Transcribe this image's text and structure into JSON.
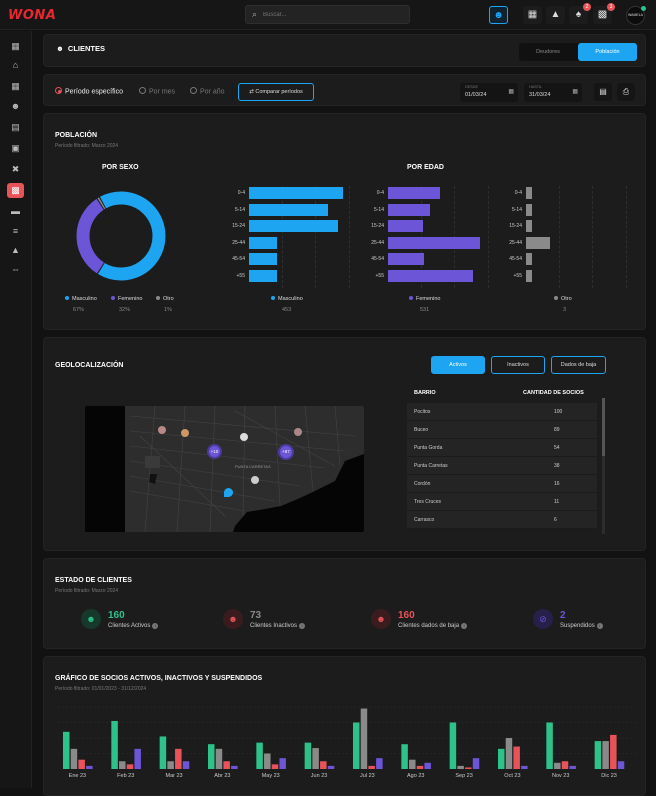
{
  "app": {
    "logo": "WONA",
    "search_placeholder": "Buscar...",
    "avatar_text": "WAMELA"
  },
  "topbar": {
    "notif_count": "2",
    "msg_count": "3"
  },
  "header": {
    "title": "CLIENTES",
    "tab_deudores": "Deudores",
    "tab_poblacion": "Población"
  },
  "filters": {
    "periodo_especifico": "Período específico",
    "por_mes": "Por mes",
    "por_anio": "Por año",
    "comparar": "Comparar períodos",
    "desde_label": "DESDE",
    "desde_value": "01/03/24",
    "hasta_label": "HASTA",
    "hasta_value": "31/03/24"
  },
  "poblacion": {
    "title": "POBLACIÓN",
    "subtitle": "Período filtrado: Marzo 2024",
    "por_sexo": "POR SEXO",
    "por_edad": "POR EDAD",
    "donut": [
      {
        "label": "Masculino",
        "pct": "67%",
        "value": 67,
        "color": "#1ea5f2"
      },
      {
        "label": "Femenino",
        "pct": "32%",
        "value": 32,
        "color": "#6c55d6"
      },
      {
        "label": "Otro",
        "pct": "1%",
        "value": 1,
        "color": "#8a8a8a"
      }
    ],
    "age_groups": [
      "0-4",
      "5-14",
      "15-24",
      "25-44",
      "45-54",
      "+55"
    ],
    "masculino": {
      "label": "Masculino",
      "total": "453",
      "values": [
        95,
        80,
        90,
        28,
        28,
        28
      ],
      "color": "#1ea5f2"
    },
    "femenino": {
      "label": "Femenino",
      "total": "531",
      "values": [
        53,
        42,
        35,
        93,
        36,
        86
      ],
      "color": "#6c55d6"
    },
    "otro": {
      "label": "Otro",
      "total": "3",
      "values": [
        6,
        6,
        6,
        24,
        6,
        6
      ],
      "color": "#8a8a8a"
    }
  },
  "geo": {
    "title": "GEOLOCALIZACIÓN",
    "btn_activos": "Activos",
    "btn_inactivos": "Inactivos",
    "btn_baja": "Dados de baja",
    "map_label": "PUNTA CARRETAS",
    "cluster_a": "+10",
    "cluster_b": "+87",
    "col_barrio": "BARRIO",
    "col_cantidad": "CANTIDAD DE SOCIOS",
    "rows": [
      {
        "barrio": "Pocitos",
        "cantidad": "100"
      },
      {
        "barrio": "Buceo",
        "cantidad": "89"
      },
      {
        "barrio": "Punta Gorda",
        "cantidad": "54"
      },
      {
        "barrio": "Punta Carretas",
        "cantidad": "38"
      },
      {
        "barrio": "Cordón",
        "cantidad": "16"
      },
      {
        "barrio": "Tres Cruces",
        "cantidad": "11"
      },
      {
        "barrio": "Carrasco",
        "cantidad": "6"
      }
    ]
  },
  "estado": {
    "title": "ESTADO DE CLIENTES",
    "subtitle": "Período filtrado: Marzo 2024",
    "activos": {
      "num": "160",
      "label": "Clientes Activos",
      "color": "#2ec28a"
    },
    "inactivos": {
      "num": "73",
      "label": "Clientes Inactivos",
      "color": "#8a8a8a"
    },
    "baja": {
      "num": "160",
      "label": "Clientes dados de baja",
      "color": "#e8535a"
    },
    "suspendidos": {
      "num": "2",
      "label": "Suspendidos",
      "color": "#6c55d6"
    }
  },
  "chart_data": {
    "type": "bar",
    "title": "GRÁFICO DE SOCIOS ACTIVOS, INACTIVOS Y SUSPENDIDOS",
    "subtitle": "Período filtrado: 01/01/2023 - 31/12/2024",
    "categories": [
      "Ene 23",
      "Feb 23",
      "Mar 23",
      "Abr 23",
      "May 23",
      "Jun 23",
      "Jul 23",
      "Ago 23",
      "Sep 23",
      "Oct 23",
      "Nov 23",
      "Dic 23"
    ],
    "series": [
      {
        "values": [
          48,
          62,
          42,
          32,
          34,
          34,
          60,
          32,
          60,
          26,
          60,
          36
        ],
        "color": "#2ec28a"
      },
      {
        "values": [
          26,
          10,
          10,
          26,
          20,
          27,
          78,
          12,
          4,
          40,
          8,
          36
        ],
        "color": "#8a8a8a"
      },
      {
        "values": [
          12,
          6,
          26,
          10,
          6,
          10,
          4,
          4,
          2,
          29,
          10,
          44
        ],
        "color": "#e8535a"
      },
      {
        "values": [
          4,
          26,
          10,
          4,
          14,
          4,
          14,
          8,
          14,
          4,
          4,
          10
        ],
        "color": "#6c55d6"
      }
    ],
    "ylim": [
      0,
      80
    ]
  }
}
